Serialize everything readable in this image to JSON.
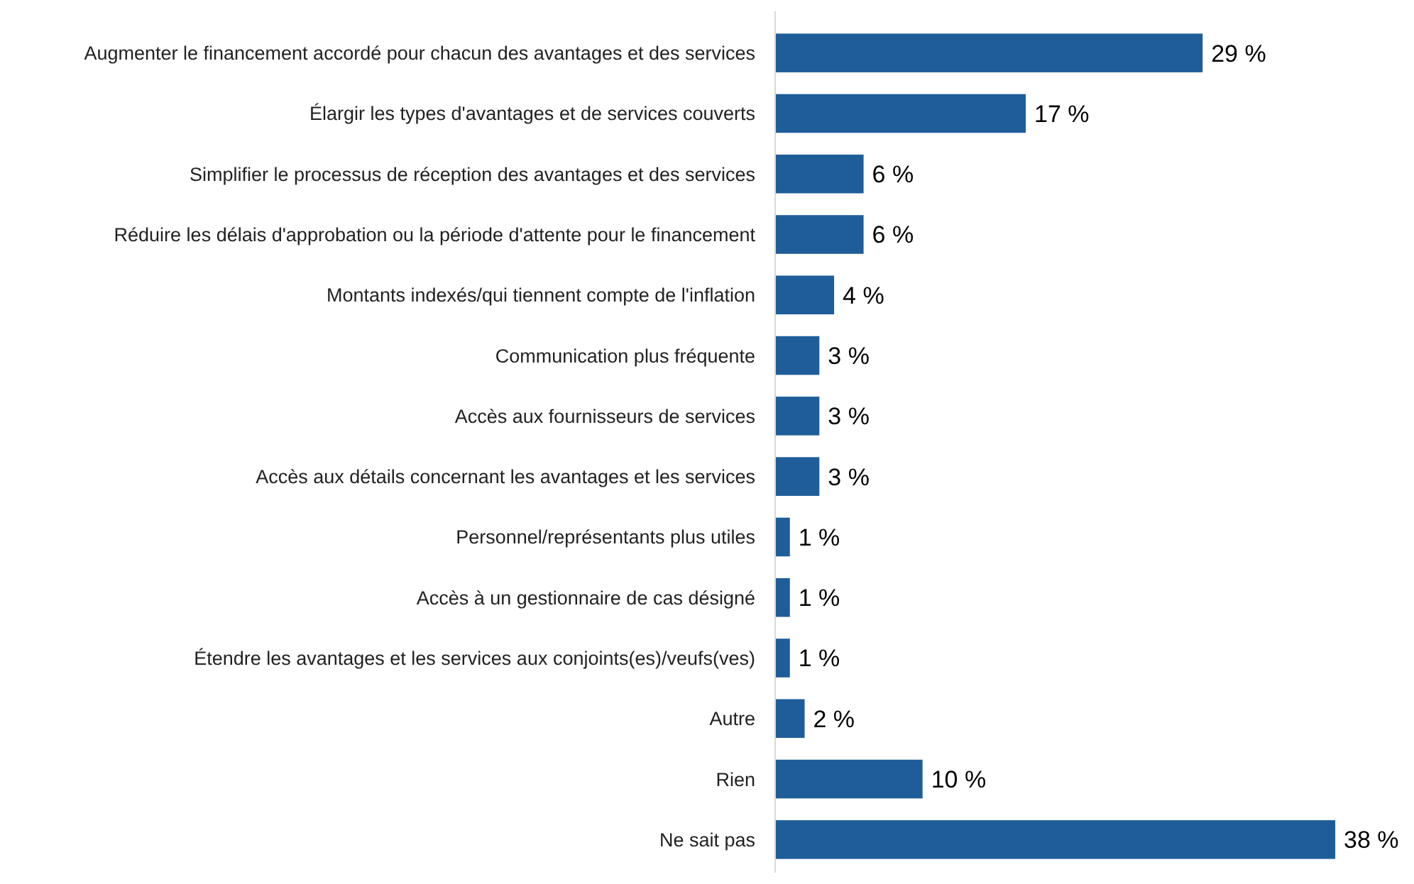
{
  "chart_data": {
    "type": "bar",
    "orientation": "horizontal",
    "categories": [
      "Augmenter le financement accordé pour chacun des avantages et des services",
      "Élargir les types d'avantages et de services couverts",
      "Simplifier le processus de réception des avantages et des services",
      "Réduire les délais d'approbation ou la période d'attente pour le financement",
      "Montants indexés/qui tiennent compte de l'inflation",
      "Communication plus fréquente",
      "Accès aux fournisseurs de services",
      "Accès aux détails concernant les avantages et les services",
      "Personnel/représentants plus utiles",
      "Accès à un gestionnaire de cas désigné",
      "Étendre les avantages et les services aux conjoints(es)/veufs(ves)",
      "Autre",
      "Rien",
      "Ne sait pas"
    ],
    "values": [
      29,
      17,
      6,
      6,
      4,
      3,
      3,
      3,
      1,
      1,
      1,
      2,
      10,
      38
    ],
    "value_labels": [
      "29 %",
      "17 %",
      "6 %",
      "6 %",
      "4 %",
      "3 %",
      "3 %",
      "3 %",
      "1 %",
      "1 %",
      "1 %",
      "2 %",
      "10 %",
      "38 %"
    ],
    "color": "#1f5d99"
  }
}
